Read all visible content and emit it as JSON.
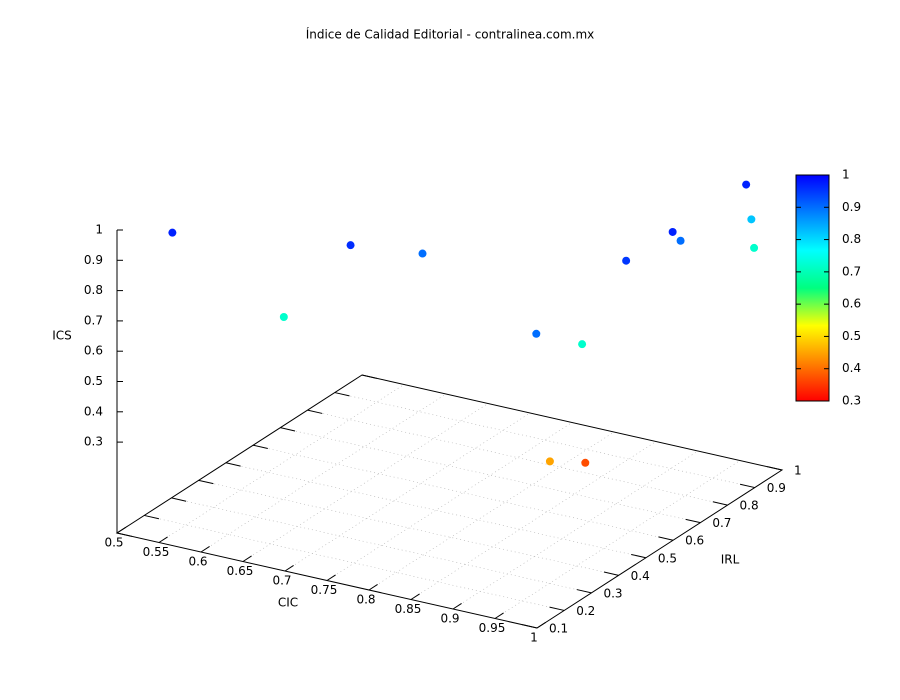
{
  "chart_data": {
    "type": "scatter3d",
    "title": "Índice de Calidad Editorial - contralinea.com.mx",
    "xlabel": "CIC",
    "ylabel": "IRL",
    "zlabel": "ICS",
    "x": [
      0.54,
      0.65,
      0.71,
      0.76,
      0.97,
      0.95,
      0.97,
      0.98,
      0.97,
      0.98,
      0.97,
      0.97,
      0.97,
      0.97
    ],
    "y": [
      0.18,
      0.25,
      0.31,
      0.42,
      0.19,
      0.42,
      0.52,
      0.66,
      0.72,
      0.93,
      0.98,
      0.99,
      0.24,
      0.37
    ],
    "z": [
      0.97,
      0.72,
      0.96,
      0.9,
      0.9,
      0.72,
      0.95,
      0.97,
      0.9,
      0.97,
      0.82,
      0.72,
      0.45,
      0.37
    ],
    "xlim": [
      0.5,
      1
    ],
    "xticks": [
      0.5,
      0.55,
      0.6,
      0.65,
      0.7,
      0.75,
      0.8,
      0.85,
      0.9,
      0.95,
      1
    ],
    "ylim": [
      0.1,
      1
    ],
    "yticks": [
      0.1,
      0.2,
      0.3,
      0.4,
      0.5,
      0.6,
      0.7,
      0.8,
      0.9,
      1
    ],
    "zlim": [
      0,
      1
    ],
    "zticks": [
      0.3,
      0.4,
      0.5,
      0.6,
      0.7,
      0.8,
      0.9,
      1
    ],
    "cblim": [
      0.3,
      1
    ],
    "cbticks": [
      0.3,
      0.4,
      0.5,
      0.6,
      0.7,
      0.8,
      0.9,
      1
    ],
    "palette": [
      "#ff0000",
      "#ff8000",
      "#ffff00",
      "#00ff80",
      "#00ffff",
      "#0080ff",
      "#0000ff"
    ],
    "grid": true
  }
}
